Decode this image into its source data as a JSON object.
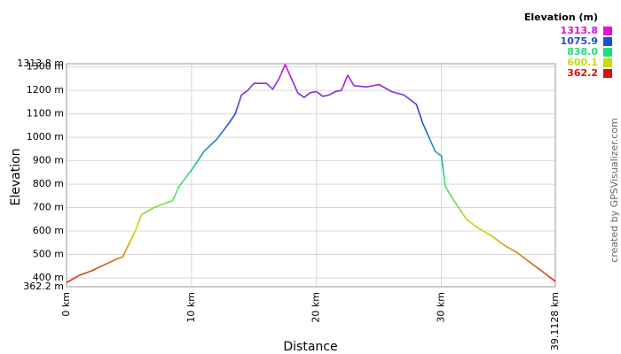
{
  "chart_data": {
    "type": "line",
    "x_label": "Distance",
    "y_label": "Elevation",
    "credit": "created by GPSVisualizer.com",
    "x": [
      0,
      1,
      2,
      3,
      4,
      4.5,
      5,
      5.5,
      6,
      7,
      8,
      8.5,
      9,
      10,
      11,
      12,
      13,
      13.5,
      14,
      14.5,
      15,
      16,
      16.5,
      17,
      17.5,
      18,
      18.5,
      19,
      19.5,
      20,
      20.5,
      21,
      21.5,
      22,
      22.5,
      23,
      24,
      25,
      26,
      27,
      28,
      28.5,
      29,
      29.5,
      30,
      30.3,
      31,
      32,
      33,
      34,
      35,
      36,
      37,
      38,
      39.1128
    ],
    "values": [
      380,
      410,
      430,
      455,
      480,
      490,
      545,
      600,
      670,
      700,
      720,
      730,
      790,
      860,
      940,
      990,
      1060,
      1100,
      1180,
      1200,
      1230,
      1230,
      1205,
      1250,
      1310,
      1250,
      1190,
      1170,
      1190,
      1195,
      1175,
      1180,
      1195,
      1200,
      1265,
      1220,
      1215,
      1225,
      1195,
      1180,
      1140,
      1060,
      1000,
      940,
      920,
      790,
      730,
      650,
      610,
      580,
      540,
      510,
      470,
      430,
      385
    ],
    "xlim": [
      0,
      39.1128
    ],
    "xticks": [
      {
        "value": 0,
        "label": "0 km"
      },
      {
        "value": 10,
        "label": "10 km"
      },
      {
        "value": 20,
        "label": "20 km"
      },
      {
        "value": 30,
        "label": "30 km"
      },
      {
        "value": 39.1128,
        "label": "39.1128 km"
      }
    ],
    "ylim": [
      362.2,
      1313.8
    ],
    "yticks": [
      {
        "value": 362.2,
        "label": "362.2 m"
      },
      {
        "value": 400,
        "label": "400 m"
      },
      {
        "value": 500,
        "label": "500 m"
      },
      {
        "value": 600,
        "label": "600 m"
      },
      {
        "value": 700,
        "label": "700 m"
      },
      {
        "value": 800,
        "label": "800 m"
      },
      {
        "value": 900,
        "label": "900 m"
      },
      {
        "value": 1000,
        "label": "1000 m"
      },
      {
        "value": 1100,
        "label": "1100 m"
      },
      {
        "value": 1200,
        "label": "1200 m"
      },
      {
        "value": 1300,
        "label": "1300 m"
      },
      {
        "value": 1313.8,
        "label": "1313.8 m"
      }
    ],
    "grid": true,
    "legend": {
      "title": "Elevation (m)",
      "items": [
        {
          "value": 1313.8,
          "label": "1313.8",
          "color": "#e010e0"
        },
        {
          "value": 1075.9,
          "label": "1075.9",
          "color": "#1a4fd8"
        },
        {
          "value": 838.0,
          "label": "838.0",
          "color": "#20dd80"
        },
        {
          "value": 600.1,
          "label": "600.1",
          "color": "#c8dc00"
        },
        {
          "value": 362.2,
          "label": "362.2",
          "color": "#dd1010"
        }
      ]
    }
  }
}
